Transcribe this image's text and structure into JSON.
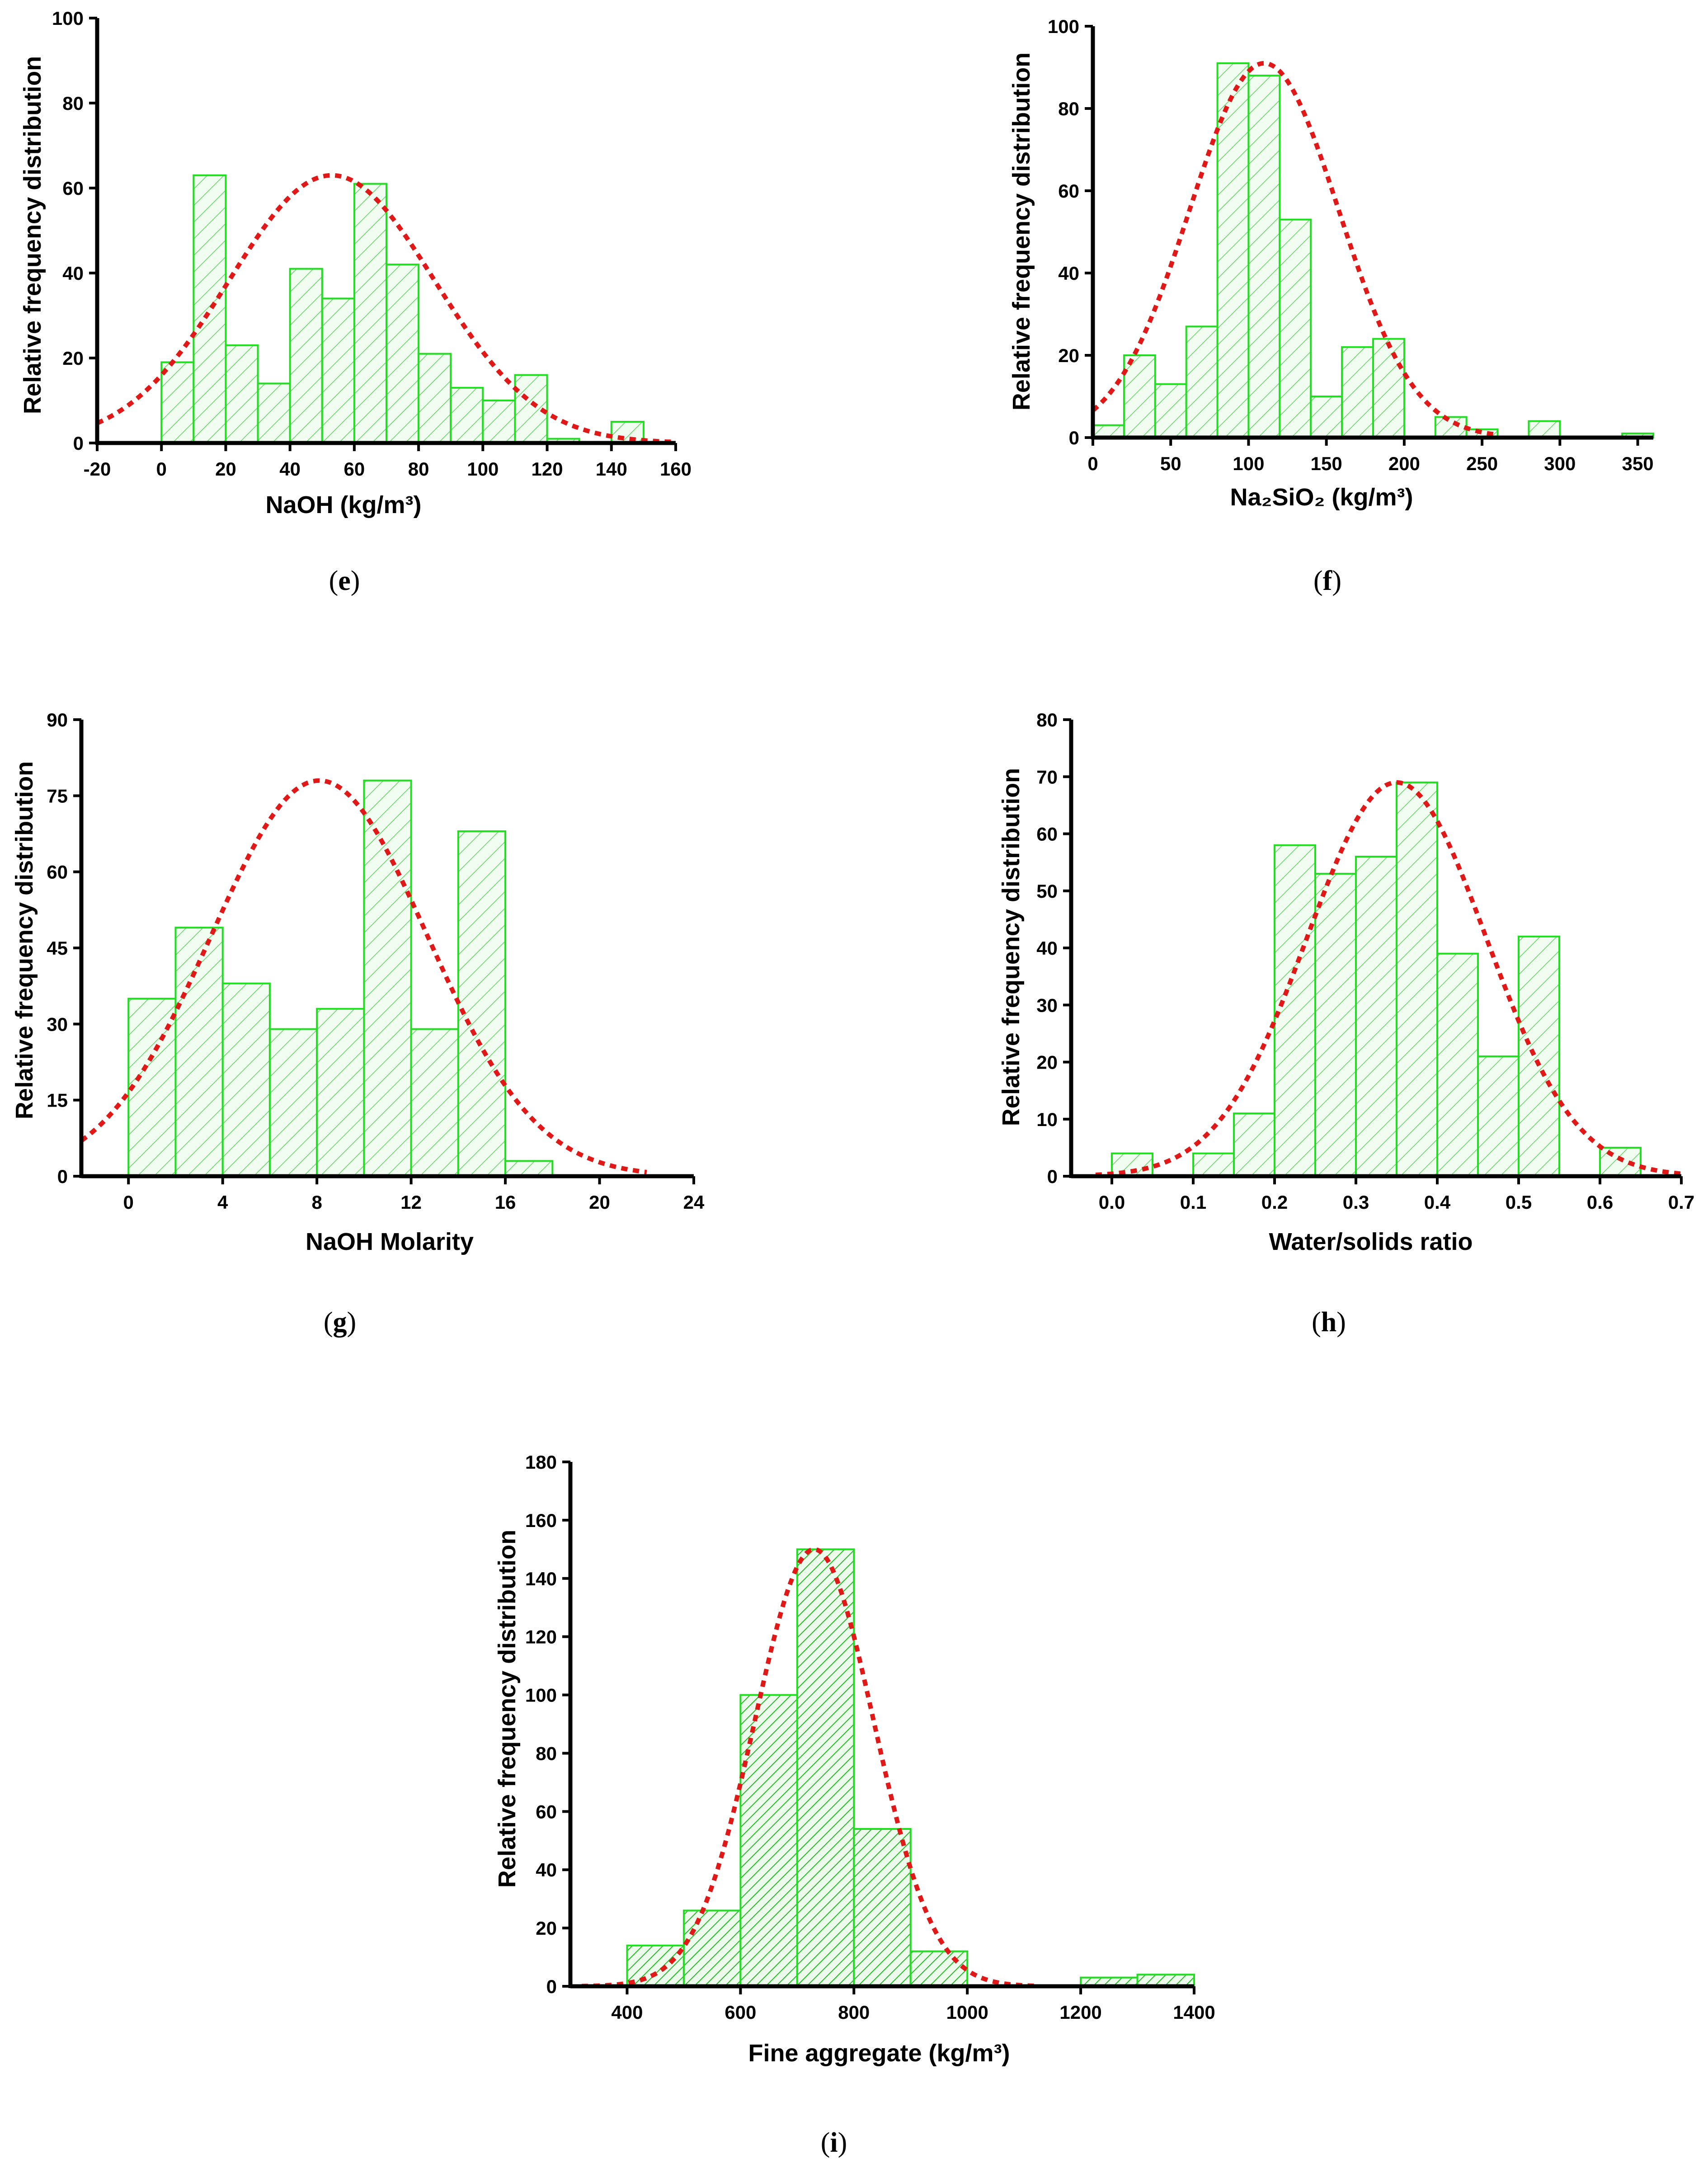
{
  "figure": {
    "hatch_color": "#2ecc2e",
    "bar_edge_color": "#22dd22",
    "bar_fill_color": "#e8fbe8",
    "curve_color": "#e01818",
    "axis_color": "#000000"
  },
  "chart_data": [
    {
      "panel": "e",
      "type": "bar",
      "bar_kind": "histogram",
      "xlabel": "NaOH (kg/m³)",
      "ylabel": "Relative frequency distribution",
      "xlim": [
        -20,
        160
      ],
      "ylim": [
        0,
        100
      ],
      "xticks": [
        "-20",
        "0",
        "20",
        "40",
        "60",
        "80",
        "100",
        "120",
        "140",
        "160"
      ],
      "yticks": [
        "0",
        "20",
        "40",
        "60",
        "80",
        "100"
      ],
      "bin_width": 10,
      "bins": [
        {
          "x0": 0,
          "value": 19
        },
        {
          "x0": 10,
          "value": 63
        },
        {
          "x0": 20,
          "value": 23
        },
        {
          "x0": 30,
          "value": 14
        },
        {
          "x0": 40,
          "value": 41
        },
        {
          "x0": 50,
          "value": 34
        },
        {
          "x0": 60,
          "value": 61
        },
        {
          "x0": 70,
          "value": 42
        },
        {
          "x0": 80,
          "value": 21
        },
        {
          "x0": 90,
          "value": 13
        },
        {
          "x0": 100,
          "value": 10
        },
        {
          "x0": 110,
          "value": 16
        },
        {
          "x0": 120,
          "value": 1
        },
        {
          "x0": 140,
          "value": 5
        }
      ],
      "fit": {
        "type": "normal",
        "mean": 53,
        "sd": 32,
        "peak": 63,
        "x_range": [
          -20,
          160
        ]
      },
      "hatch": "sparse"
    },
    {
      "panel": "f",
      "type": "bar",
      "bar_kind": "histogram",
      "xlabel": "Na₂SiO₂ (kg/m³)",
      "ylabel": "Relative frequency distribution",
      "xlim": [
        0,
        360
      ],
      "ylim": [
        0,
        100
      ],
      "xticks": [
        "0",
        "50",
        "100",
        "150",
        "200",
        "250",
        "300",
        "350"
      ],
      "yticks": [
        "0",
        "20",
        "40",
        "60",
        "80",
        "100"
      ],
      "bin_width": 20,
      "bins": [
        {
          "x0": 0,
          "value": 3
        },
        {
          "x0": 20,
          "value": 20
        },
        {
          "x0": 40,
          "value": 13
        },
        {
          "x0": 60,
          "value": 27
        },
        {
          "x0": 80,
          "value": 91
        },
        {
          "x0": 100,
          "value": 88
        },
        {
          "x0": 120,
          "value": 53
        },
        {
          "x0": 140,
          "value": 10
        },
        {
          "x0": 160,
          "value": 22
        },
        {
          "x0": 180,
          "value": 24
        },
        {
          "x0": 220,
          "value": 5
        },
        {
          "x0": 240,
          "value": 2
        },
        {
          "x0": 280,
          "value": 4
        },
        {
          "x0": 340,
          "value": 1
        }
      ],
      "fit": {
        "type": "normal",
        "mean": 110,
        "sd": 48,
        "peak": 91,
        "x_range": [
          0,
          260
        ]
      },
      "hatch": "sparse"
    },
    {
      "panel": "g",
      "type": "bar",
      "bar_kind": "histogram",
      "xlabel": "NaOH Molarity",
      "ylabel": "Relative frequency distribution",
      "xlim": [
        -2,
        24
      ],
      "ylim": [
        0,
        90
      ],
      "xticks": [
        "0",
        "4",
        "8",
        "12",
        "16",
        "20",
        "24"
      ],
      "yticks": [
        "0",
        "15",
        "30",
        "45",
        "60",
        "75",
        "90"
      ],
      "bin_width": 2,
      "bins": [
        {
          "x0": 0,
          "value": 35
        },
        {
          "x0": 2,
          "value": 49
        },
        {
          "x0": 4,
          "value": 38
        },
        {
          "x0": 6,
          "value": 29
        },
        {
          "x0": 8,
          "value": 33
        },
        {
          "x0": 10,
          "value": 78
        },
        {
          "x0": 12,
          "value": 29
        },
        {
          "x0": 14,
          "value": 68
        },
        {
          "x0": 16,
          "value": 3
        }
      ],
      "fit": {
        "type": "normal",
        "mean": 8.1,
        "sd": 4.6,
        "peak": 78,
        "x_range": [
          -2,
          22
        ]
      },
      "hatch": "sparse"
    },
    {
      "panel": "h",
      "type": "bar",
      "bar_kind": "histogram",
      "xlabel": "Water/solids ratio",
      "ylabel": "Relative frequency distribution",
      "xlim": [
        -0.05,
        0.7
      ],
      "ylim": [
        0,
        80
      ],
      "xticks": [
        "0.0",
        "0.1",
        "0.2",
        "0.3",
        "0.4",
        "0.5",
        "0.6",
        "0.7"
      ],
      "yticks": [
        "0",
        "10",
        "20",
        "30",
        "40",
        "50",
        "60",
        "70",
        "80"
      ],
      "bin_width": 0.05,
      "bins": [
        {
          "x0": 0.0,
          "value": 4
        },
        {
          "x0": 0.1,
          "value": 4
        },
        {
          "x0": 0.15,
          "value": 11
        },
        {
          "x0": 0.2,
          "value": 58
        },
        {
          "x0": 0.25,
          "value": 53
        },
        {
          "x0": 0.3,
          "value": 56
        },
        {
          "x0": 0.35,
          "value": 69
        },
        {
          "x0": 0.4,
          "value": 39
        },
        {
          "x0": 0.45,
          "value": 21
        },
        {
          "x0": 0.5,
          "value": 42
        },
        {
          "x0": 0.6,
          "value": 5
        }
      ],
      "fit": {
        "type": "normal",
        "mean": 0.35,
        "sd": 0.11,
        "peak": 69,
        "x_range": [
          -0.02,
          0.7
        ]
      },
      "hatch": "sparse"
    },
    {
      "panel": "i",
      "type": "bar",
      "bar_kind": "histogram",
      "xlabel": "Fine aggregate (kg/m³)",
      "ylabel": "Relative frequency distribution",
      "xlim": [
        300,
        1400
      ],
      "ylim": [
        0,
        180
      ],
      "xticks": [
        "400",
        "600",
        "800",
        "1000",
        "1200",
        "1400"
      ],
      "yticks": [
        "0",
        "20",
        "40",
        "60",
        "80",
        "100",
        "120",
        "140",
        "160",
        "180"
      ],
      "bin_width": 100,
      "bins": [
        {
          "x0": 400,
          "value": 14
        },
        {
          "x0": 500,
          "value": 26
        },
        {
          "x0": 600,
          "value": 100
        },
        {
          "x0": 700,
          "value": 150
        },
        {
          "x0": 800,
          "value": 54
        },
        {
          "x0": 900,
          "value": 12
        },
        {
          "x0": 1200,
          "value": 3
        },
        {
          "x0": 1300,
          "value": 4
        }
      ],
      "fit": {
        "type": "normal",
        "mean": 730,
        "sd": 105,
        "peak": 150,
        "x_range": [
          320,
          1120
        ]
      },
      "hatch": "dense"
    }
  ],
  "panel_labels": [
    "e",
    "f",
    "g",
    "h",
    "i"
  ]
}
